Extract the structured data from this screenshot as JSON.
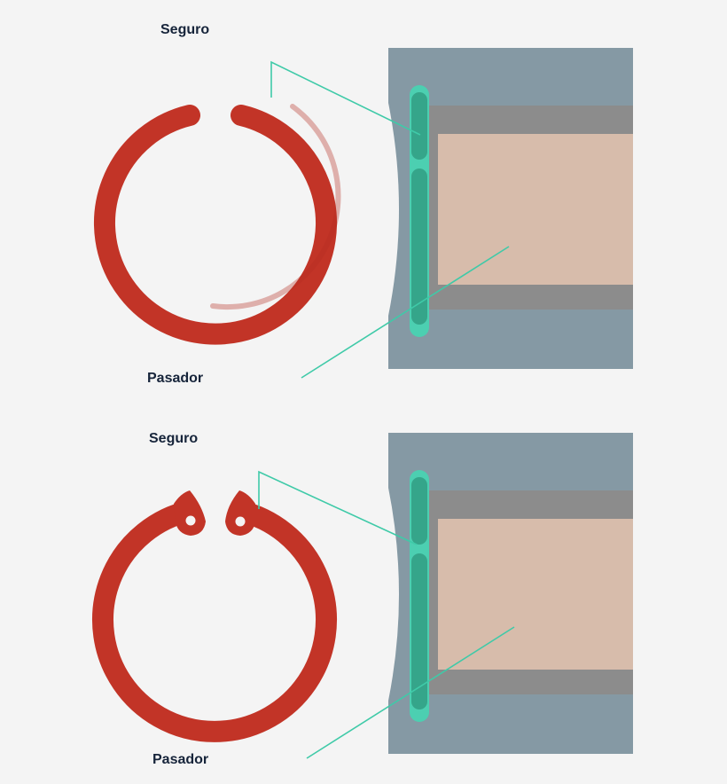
{
  "panels": [
    {
      "clip_label": "Seguro",
      "pin_label": "Pasador",
      "clip_style": "plain-ends"
    },
    {
      "clip_label": "Seguro",
      "pin_label": "Pasador",
      "clip_style": "lug-holes"
    }
  ],
  "colors": {
    "background": "#f4f4f4",
    "ring": "#c23427",
    "housing": "#8599a4",
    "bore_shadow": "#8c8c8c",
    "pin": "#d7bcab",
    "clip_dark": "#35a58a",
    "clip_light": "#4ccfb1",
    "leader": "#3fcaa8",
    "text": "#16243a"
  }
}
